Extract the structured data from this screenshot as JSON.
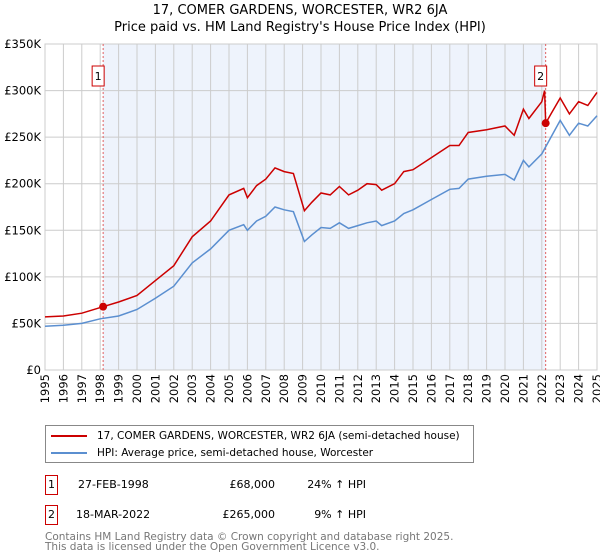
{
  "chart_data": {
    "type": "line",
    "title": "17, COMER GARDENS, WORCESTER, WR2 6JA",
    "subtitle": "Price paid vs. HM Land Registry's House Price Index (HPI)",
    "xlim": [
      1995,
      2025
    ],
    "ylim": [
      0,
      350000
    ],
    "y_ticks": [
      {
        "v": 0,
        "label": "£0"
      },
      {
        "v": 50000,
        "label": "£50K"
      },
      {
        "v": 100000,
        "label": "£100K"
      },
      {
        "v": 150000,
        "label": "£150K"
      },
      {
        "v": 200000,
        "label": "£200K"
      },
      {
        "v": 250000,
        "label": "£250K"
      },
      {
        "v": 300000,
        "label": "£300K"
      },
      {
        "v": 350000,
        "label": "£350K"
      }
    ],
    "x_ticks": [
      "1995",
      "1996",
      "1997",
      "1998",
      "1999",
      "2000",
      "2001",
      "2002",
      "2003",
      "2004",
      "2005",
      "2006",
      "2007",
      "2008",
      "2009",
      "2010",
      "2011",
      "2012",
      "2013",
      "2014",
      "2015",
      "2016",
      "2017",
      "2018",
      "2019",
      "2020",
      "2021",
      "2022",
      "2023",
      "2024",
      "2025"
    ],
    "grid": true,
    "shaded_range": [
      1998.16,
      2022.21
    ],
    "series": [
      {
        "name": "17, COMER GARDENS, WORCESTER, WR2 6JA (semi-detached house)",
        "color": "#cc0000",
        "x": [
          1995,
          1996,
          1997,
          1998.16,
          1999,
          2000,
          2001,
          2002,
          2003,
          2004,
          2005,
          2005.8,
          2006,
          2006.5,
          2007,
          2007.5,
          2008,
          2008.5,
          2009.1,
          2009.5,
          2010,
          2010.5,
          2011,
          2011.5,
          2012,
          2012.5,
          2013,
          2013.3,
          2014,
          2014.5,
          2015,
          2016,
          2017,
          2017.5,
          2018,
          2019,
          2020,
          2020.5,
          2021,
          2021.3,
          2022,
          2022.15,
          2022.21,
          2022.5,
          2023,
          2023.5,
          2024,
          2024.5,
          2025
        ],
        "y": [
          57000,
          58000,
          61000,
          68000,
          73000,
          80000,
          96000,
          112000,
          143000,
          160000,
          188000,
          195000,
          185000,
          198000,
          205000,
          217000,
          213000,
          211000,
          171000,
          180000,
          190000,
          188000,
          197000,
          188000,
          193000,
          200000,
          199000,
          193000,
          200000,
          213000,
          215000,
          228000,
          241000,
          241000,
          255000,
          258000,
          262000,
          252000,
          280000,
          270000,
          288000,
          300000,
          265000,
          275000,
          292000,
          275000,
          288000,
          284000,
          298000
        ]
      },
      {
        "name": "HPI: Average price, semi-detached house, Worcester",
        "color": "#5b8fd0",
        "x": [
          1995,
          1996,
          1997,
          1998,
          1999,
          2000,
          2001,
          2002,
          2003,
          2004,
          2005,
          2005.8,
          2006,
          2006.5,
          2007,
          2007.5,
          2008,
          2008.5,
          2009.1,
          2009.5,
          2010,
          2010.5,
          2011,
          2011.5,
          2012,
          2012.5,
          2013,
          2013.3,
          2014,
          2014.5,
          2015,
          2016,
          2017,
          2017.5,
          2018,
          2019,
          2020,
          2020.5,
          2021,
          2021.3,
          2022,
          2022.5,
          2023,
          2023.5,
          2024,
          2024.5,
          2025
        ],
        "y": [
          47000,
          48000,
          50000,
          55000,
          58000,
          65000,
          77000,
          90000,
          115000,
          130000,
          150000,
          156000,
          150000,
          160000,
          165000,
          175000,
          172000,
          170000,
          138000,
          145000,
          153000,
          152000,
          158000,
          152000,
          155000,
          158000,
          160000,
          155000,
          160000,
          168000,
          172000,
          183000,
          194000,
          195000,
          205000,
          208000,
          210000,
          204000,
          225000,
          218000,
          232000,
          250000,
          268000,
          252000,
          265000,
          262000,
          273000
        ]
      }
    ],
    "markers": [
      {
        "label": "1",
        "x": 1998.16,
        "y": 68000
      },
      {
        "label": "2",
        "x": 2022.21,
        "y": 265000
      }
    ],
    "legend_placement": "below"
  },
  "transactions": [
    {
      "num": "1",
      "date": "27-FEB-1998",
      "price": "£68,000",
      "hpi": "24% ↑ HPI"
    },
    {
      "num": "2",
      "date": "18-MAR-2022",
      "price": "£265,000",
      "hpi": "9% ↑ HPI"
    }
  ],
  "footer": {
    "line1": "Contains HM Land Registry data © Crown copyright and database right 2025.",
    "line2": "This data is licensed under the Open Government Licence v3.0."
  }
}
